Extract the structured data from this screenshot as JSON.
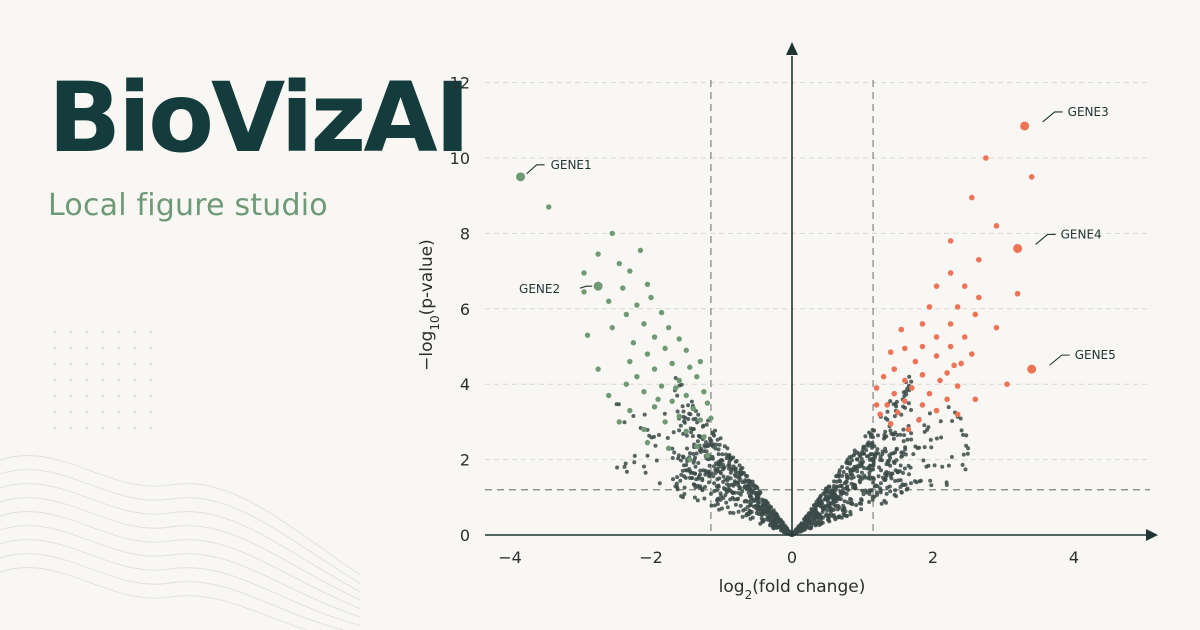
{
  "brand": {
    "title": "BioVizAI",
    "subtitle": "Local figure studio"
  },
  "chart_data": {
    "type": "scatter",
    "subtype": "volcano",
    "title": "",
    "xlabel": {
      "base": "log",
      "sub": "2",
      "rest": "(fold change)"
    },
    "ylabel": {
      "base": "−log",
      "sub": "10",
      "rest": "(p-value)"
    },
    "xlim": [
      -4.4,
      5.0
    ],
    "ylim": [
      0,
      12.6
    ],
    "xticks": [
      -4,
      -2,
      0,
      2,
      4
    ],
    "xtick_labels": [
      "−4",
      "−2",
      "0",
      "2",
      "4"
    ],
    "yticks": [
      0,
      2,
      4,
      6,
      8,
      10,
      12
    ],
    "ytick_labels": [
      "0",
      "2",
      "4",
      "6",
      "8",
      "10",
      "12"
    ],
    "fc_threshold": [
      -1.15,
      1.15
    ],
    "p_threshold": 1.2,
    "grid": "horizontal dashed",
    "colors": {
      "down": "#6f9a74",
      "up": "#ee7458",
      "ns": "#3b4a48",
      "axis": "#1f3535",
      "threshold": "#7d8480"
    },
    "labeled_points": [
      {
        "label": "GENE1",
        "x": -3.85,
        "y": 9.5,
        "group": "down"
      },
      {
        "label": "GENE2",
        "x": -2.75,
        "y": 6.6,
        "group": "down"
      },
      {
        "label": "GENE3",
        "x": 3.3,
        "y": 10.85,
        "group": "up"
      },
      {
        "label": "GENE4",
        "x": 3.2,
        "y": 7.6,
        "group": "up"
      },
      {
        "label": "GENE5",
        "x": 3.4,
        "y": 4.4,
        "group": "up"
      }
    ],
    "down_points": [
      [
        -3.45,
        8.7
      ],
      [
        -2.55,
        8.0
      ],
      [
        -2.15,
        7.55
      ],
      [
        -2.75,
        7.45
      ],
      [
        -2.45,
        7.2
      ],
      [
        -2.95,
        6.95
      ],
      [
        -2.3,
        7.0
      ],
      [
        -2.05,
        6.65
      ],
      [
        -2.95,
        6.45
      ],
      [
        -2.4,
        6.55
      ],
      [
        -2.6,
        6.2
      ],
      [
        -2.2,
        6.1
      ],
      [
        -2.0,
        6.3
      ],
      [
        -1.85,
        5.9
      ],
      [
        -2.35,
        5.85
      ],
      [
        -2.1,
        5.6
      ],
      [
        -1.75,
        5.5
      ],
      [
        -2.55,
        5.5
      ],
      [
        -1.95,
        5.25
      ],
      [
        -1.6,
        5.2
      ],
      [
        -2.25,
        5.1
      ],
      [
        -1.8,
        4.95
      ],
      [
        -2.05,
        4.8
      ],
      [
        -1.5,
        4.9
      ],
      [
        -2.3,
        4.6
      ],
      [
        -1.7,
        4.55
      ],
      [
        -1.95,
        4.4
      ],
      [
        -1.45,
        4.45
      ],
      [
        -2.2,
        4.2
      ],
      [
        -1.6,
        4.1
      ],
      [
        -1.35,
        4.2
      ],
      [
        -1.85,
        3.95
      ],
      [
        -2.1,
        3.8
      ],
      [
        -1.5,
        3.7
      ],
      [
        -1.25,
        3.8
      ],
      [
        -1.7,
        3.55
      ],
      [
        -1.95,
        3.4
      ],
      [
        -1.4,
        3.35
      ],
      [
        -1.2,
        3.5
      ],
      [
        -1.6,
        3.15
      ],
      [
        -1.3,
        3.05
      ],
      [
        -1.8,
        3.0
      ],
      [
        -2.45,
        3.0
      ],
      [
        -2.75,
        4.4
      ],
      [
        -2.6,
        3.7
      ],
      [
        -2.3,
        3.3
      ],
      [
        -2.1,
        2.8
      ],
      [
        -1.5,
        2.75
      ],
      [
        -1.25,
        2.6
      ],
      [
        -1.15,
        3.1
      ],
      [
        -1.35,
        2.35
      ],
      [
        -1.2,
        2.1
      ],
      [
        -1.45,
        2.0
      ],
      [
        -2.05,
        2.45
      ],
      [
        -1.75,
        2.3
      ],
      [
        -2.9,
        5.3
      ],
      [
        -2.35,
        4.0
      ],
      [
        -1.65,
        3.9
      ],
      [
        -1.9,
        3.6
      ],
      [
        -1.3,
        4.6
      ]
    ],
    "up_points": [
      [
        2.75,
        10.0
      ],
      [
        3.4,
        9.5
      ],
      [
        2.55,
        8.95
      ],
      [
        2.9,
        8.2
      ],
      [
        2.25,
        7.8
      ],
      [
        2.65,
        7.3
      ],
      [
        2.25,
        6.95
      ],
      [
        2.45,
        6.6
      ],
      [
        2.05,
        6.6
      ],
      [
        3.2,
        6.4
      ],
      [
        2.65,
        6.3
      ],
      [
        2.35,
        6.05
      ],
      [
        1.95,
        6.05
      ],
      [
        2.6,
        5.85
      ],
      [
        2.25,
        5.6
      ],
      [
        1.85,
        5.6
      ],
      [
        2.9,
        5.5
      ],
      [
        2.45,
        5.25
      ],
      [
        2.05,
        5.25
      ],
      [
        1.55,
        5.45
      ],
      [
        2.25,
        5.0
      ],
      [
        1.85,
        5.0
      ],
      [
        2.55,
        4.8
      ],
      [
        1.6,
        4.95
      ],
      [
        2.05,
        4.75
      ],
      [
        1.4,
        4.85
      ],
      [
        1.75,
        4.6
      ],
      [
        2.3,
        4.5
      ],
      [
        1.45,
        4.4
      ],
      [
        1.85,
        4.25
      ],
      [
        2.1,
        4.1
      ],
      [
        1.6,
        4.1
      ],
      [
        1.3,
        4.2
      ],
      [
        2.35,
        3.95
      ],
      [
        1.7,
        3.9
      ],
      [
        1.95,
        3.75
      ],
      [
        1.45,
        3.75
      ],
      [
        1.2,
        3.9
      ],
      [
        2.2,
        3.6
      ],
      [
        1.6,
        3.55
      ],
      [
        1.85,
        3.45
      ],
      [
        1.35,
        3.45
      ],
      [
        2.05,
        3.3
      ],
      [
        1.5,
        3.25
      ],
      [
        1.25,
        3.2
      ],
      [
        2.6,
        3.6
      ],
      [
        2.2,
        4.3
      ],
      [
        1.8,
        3.05
      ],
      [
        1.4,
        2.95
      ],
      [
        1.2,
        3.45
      ],
      [
        3.05,
        4.0
      ],
      [
        2.35,
        3.2
      ],
      [
        1.65,
        2.8
      ],
      [
        2.4,
        4.55
      ]
    ],
    "ns_points_count": 1300,
    "ns_points_note": ""
  }
}
